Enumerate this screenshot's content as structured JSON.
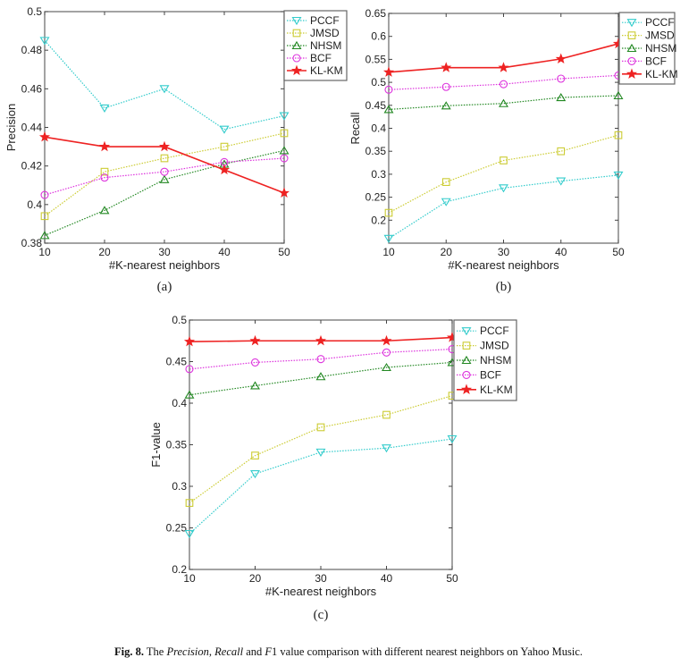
{
  "chart_data": [
    {
      "id": "a",
      "type": "line",
      "panel_label": "(a)",
      "title": "",
      "xlabel": "#K-nearest neighbors",
      "ylabel": "Precision",
      "x": [
        10,
        20,
        30,
        40,
        50
      ],
      "xlim": [
        10,
        50
      ],
      "ylim": [
        0.38,
        0.5
      ],
      "yticks": [
        0.38,
        0.4,
        0.42,
        0.44,
        0.46,
        0.48,
        0.5
      ],
      "ytick_labels": [
        "0.38",
        "0.4",
        "0.42",
        "0.44",
        "0.46",
        "0.48",
        "0.5"
      ],
      "xtick_labels": [
        "10",
        "20",
        "30",
        "40",
        "50"
      ],
      "grid": false,
      "legend_position": "outside-top-right",
      "series": [
        {
          "name": "PCCF",
          "color": "#33cccc",
          "marker": "triangle-down",
          "line": "dotted",
          "values": [
            0.485,
            0.45,
            0.46,
            0.439,
            0.446
          ]
        },
        {
          "name": "JMSD",
          "color": "#cccc33",
          "marker": "square",
          "line": "dotted",
          "values": [
            0.394,
            0.417,
            0.424,
            0.43,
            0.437
          ]
        },
        {
          "name": "NHSM",
          "color": "#228822",
          "marker": "triangle-up",
          "line": "dotted",
          "values": [
            0.384,
            0.397,
            0.413,
            0.421,
            0.428
          ]
        },
        {
          "name": "BCF",
          "color": "#dd33dd",
          "marker": "circle",
          "line": "dotted",
          "values": [
            0.405,
            0.414,
            0.417,
            0.422,
            0.424
          ]
        },
        {
          "name": "KL-KM",
          "color": "#ee2222",
          "marker": "star",
          "line": "solid",
          "values": [
            0.435,
            0.43,
            0.43,
            0.418,
            0.406
          ]
        }
      ]
    },
    {
      "id": "b",
      "type": "line",
      "panel_label": "(b)",
      "title": "",
      "xlabel": "#K-nearest neighbors",
      "ylabel": "Recall",
      "x": [
        10,
        20,
        30,
        40,
        50
      ],
      "xlim": [
        10,
        50
      ],
      "ylim": [
        0.15,
        0.65
      ],
      "yticks": [
        0.2,
        0.25,
        0.3,
        0.35,
        0.4,
        0.45,
        0.5,
        0.55,
        0.6,
        0.65
      ],
      "ytick_labels": [
        "0.2",
        "0.25",
        "0.3",
        "0.35",
        "0.4",
        "0.45",
        "0.5",
        "0.55",
        "0.6",
        "0.65"
      ],
      "xtick_labels": [
        "10",
        "20",
        "30",
        "40",
        "50"
      ],
      "grid": false,
      "legend_position": "outside-top-right",
      "series": [
        {
          "name": "PCCF",
          "color": "#33cccc",
          "marker": "triangle-down",
          "line": "dotted",
          "values": [
            0.16,
            0.24,
            0.27,
            0.285,
            0.298
          ]
        },
        {
          "name": "JMSD",
          "color": "#cccc33",
          "marker": "square",
          "line": "dotted",
          "values": [
            0.216,
            0.283,
            0.33,
            0.35,
            0.385
          ]
        },
        {
          "name": "NHSM",
          "color": "#228822",
          "marker": "triangle-up",
          "line": "dotted",
          "values": [
            0.441,
            0.449,
            0.454,
            0.467,
            0.471
          ]
        },
        {
          "name": "BCF",
          "color": "#dd33dd",
          "marker": "circle",
          "line": "dotted",
          "values": [
            0.484,
            0.49,
            0.496,
            0.508,
            0.515
          ]
        },
        {
          "name": "KL-KM",
          "color": "#ee2222",
          "marker": "star",
          "line": "solid",
          "values": [
            0.522,
            0.532,
            0.532,
            0.551,
            0.584
          ]
        }
      ]
    },
    {
      "id": "c",
      "type": "line",
      "panel_label": "(c)",
      "title": "",
      "xlabel": "#K-nearest neighbors",
      "ylabel": "F1-value",
      "x": [
        10,
        20,
        30,
        40,
        50
      ],
      "xlim": [
        10,
        50
      ],
      "ylim": [
        0.2,
        0.5
      ],
      "yticks": [
        0.2,
        0.25,
        0.3,
        0.35,
        0.4,
        0.45,
        0.5
      ],
      "ytick_labels": [
        "0.2",
        "0.25",
        "0.3",
        "0.35",
        "0.4",
        "0.45",
        "0.5"
      ],
      "xtick_labels": [
        "10",
        "20",
        "30",
        "40",
        "50"
      ],
      "grid": false,
      "legend_position": "outside-top-right",
      "series": [
        {
          "name": "PCCF",
          "color": "#33cccc",
          "marker": "triangle-down",
          "line": "dotted",
          "values": [
            0.243,
            0.315,
            0.341,
            0.346,
            0.357
          ]
        },
        {
          "name": "JMSD",
          "color": "#cccc33",
          "marker": "square",
          "line": "dotted",
          "values": [
            0.28,
            0.337,
            0.371,
            0.386,
            0.409
          ]
        },
        {
          "name": "NHSM",
          "color": "#228822",
          "marker": "triangle-up",
          "line": "dotted",
          "values": [
            0.41,
            0.421,
            0.432,
            0.443,
            0.449
          ]
        },
        {
          "name": "BCF",
          "color": "#dd33dd",
          "marker": "circle",
          "line": "dotted",
          "values": [
            0.441,
            0.449,
            0.453,
            0.461,
            0.465
          ]
        },
        {
          "name": "KL-KM",
          "color": "#ee2222",
          "marker": "star",
          "line": "solid",
          "values": [
            0.474,
            0.475,
            0.475,
            0.475,
            0.479
          ]
        }
      ]
    }
  ],
  "caption": {
    "fig_label": "Fig. 8.",
    "pre": " The ",
    "term1": "Precision",
    "sep1": ", ",
    "term2": "Recall",
    "sep2": " and ",
    "term3": "F",
    "rest": "1 value comparison with different nearest neighbors on Yahoo Music."
  }
}
